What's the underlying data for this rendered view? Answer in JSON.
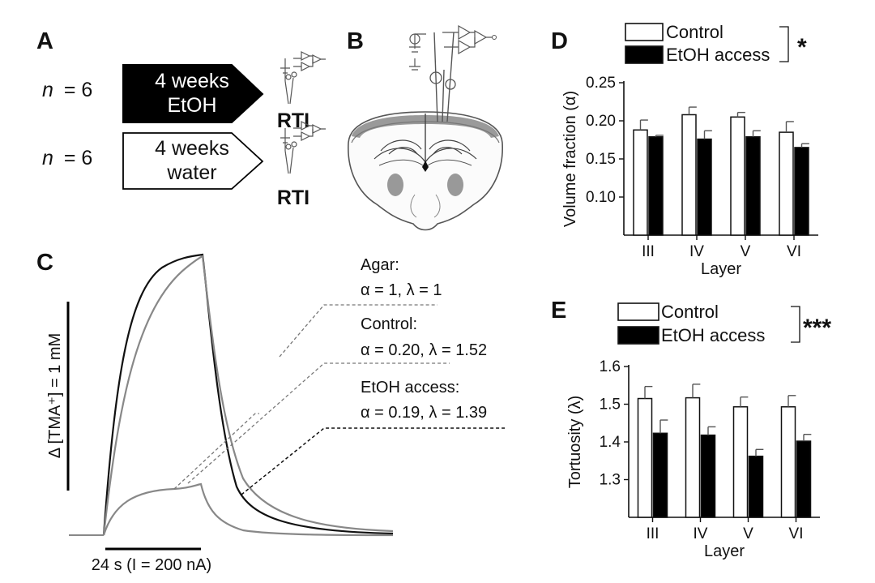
{
  "panels": {
    "a": "A",
    "b": "B",
    "c": "C",
    "d": "D",
    "e": "E"
  },
  "panel_a": {
    "rows": [
      {
        "n_label": "n",
        "n_eq": "= 6",
        "line1": "4 weeks",
        "line2": "EtOH",
        "rti": "RTI",
        "fill": "#000000",
        "text_color": "#ffffff"
      },
      {
        "n_label": "n",
        "n_eq": "= 6",
        "line1": "4 weeks",
        "line2": "water",
        "rti": "RTI",
        "fill": "#ffffff",
        "text_color": "#111111"
      }
    ]
  },
  "panel_c": {
    "scale_bar_label": "Δ [TMA⁺] = 1 mM",
    "time_bar_label": "24 s (I = 200 nA)",
    "annotations": [
      {
        "title": "Agar:",
        "params": "α = 1, λ = 1"
      },
      {
        "title": "Control:",
        "params": "α = 0.20, λ = 1.52"
      },
      {
        "title": "EtOH access:",
        "params": "α = 0.19, λ = 1.39"
      }
    ]
  },
  "chart_data": [
    {
      "id": "D",
      "type": "bar",
      "ylabel": "Volume fraction (α)",
      "xlabel": "Layer",
      "categories": [
        "III",
        "IV",
        "V",
        "VI"
      ],
      "ylim": [
        0.05,
        0.25
      ],
      "yticks": [
        0.1,
        0.15,
        0.2,
        0.25
      ],
      "ytick_labels": [
        "0.10",
        "0.15",
        "0.20",
        "0.25"
      ],
      "significance": "*",
      "series": [
        {
          "name": "Control",
          "color": "#ffffff",
          "values": [
            0.188,
            0.208,
            0.205,
            0.185
          ],
          "errors": [
            0.013,
            0.01,
            0.006,
            0.014
          ]
        },
        {
          "name": "EtOH access",
          "color": "#000000",
          "values": [
            0.179,
            0.176,
            0.179,
            0.165
          ],
          "errors": [
            0.002,
            0.011,
            0.008,
            0.005
          ]
        }
      ]
    },
    {
      "id": "E",
      "type": "bar",
      "ylabel": "Tortuosity (λ)",
      "xlabel": "Layer",
      "categories": [
        "III",
        "IV",
        "V",
        "VI"
      ],
      "ylim": [
        1.2,
        1.6
      ],
      "yticks": [
        1.3,
        1.4,
        1.5,
        1.6
      ],
      "ytick_labels": [
        "1.3",
        "1.4",
        "1.5",
        "1.6"
      ],
      "significance": "***",
      "series": [
        {
          "name": "Control",
          "color": "#ffffff",
          "values": [
            1.515,
            1.517,
            1.493,
            1.493
          ],
          "errors": [
            0.032,
            0.036,
            0.026,
            0.03
          ]
        },
        {
          "name": "EtOH access",
          "color": "#000000",
          "values": [
            1.423,
            1.418,
            1.362,
            1.402
          ],
          "errors": [
            0.035,
            0.022,
            0.018,
            0.018
          ]
        }
      ]
    }
  ]
}
